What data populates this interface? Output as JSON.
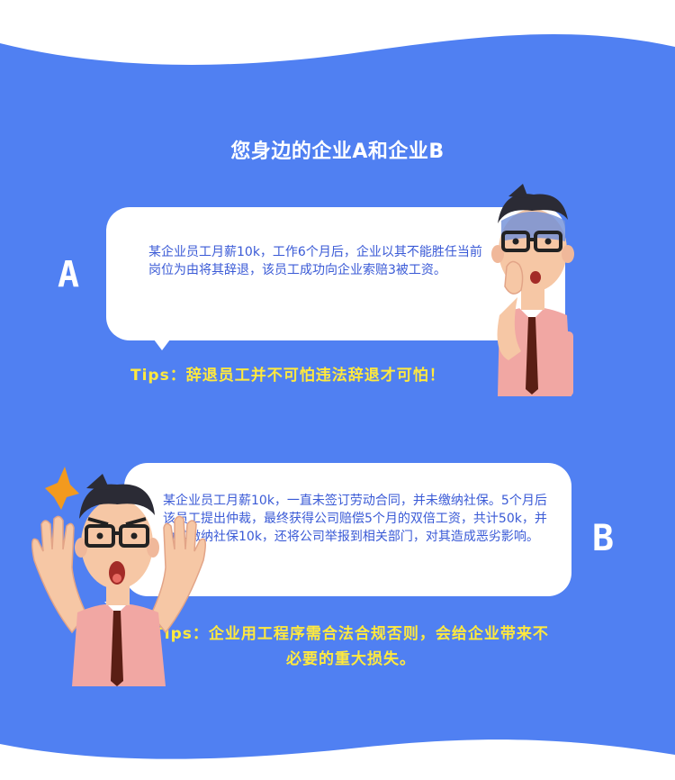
{
  "colors": {
    "background_blue": "#5080f2",
    "text_blue": "#3a5ad6",
    "tip_yellow": "#ffe93e"
  },
  "title": "您身边的企业A和企业B",
  "case_a": {
    "letter": "A",
    "text": "某企业员工月薪10k，工作6个月后，企业以其不能胜任当前岗位为由将其辞退，该员工成功向企业索赔3被工资。",
    "tip": "Tips：辞退员工并不可怕违法辞退才可怕！"
  },
  "case_b": {
    "letter": "B",
    "text": "某企业员工月薪10k，一直未签订劳动合同，并未缴纳社保。5个月后该员工提出仲裁，最终获得公司赔偿5个月的双倍工资，共计50k，并为其缴纳社保10k，还将公司举报到相关部门，对其造成恶劣影响。",
    "tip": "Tips：企业用工程序需合法合规否则，会给企业带来不必要的重大损失。"
  }
}
